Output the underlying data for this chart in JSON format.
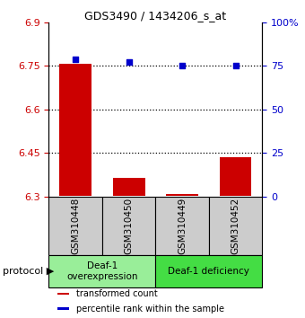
{
  "title": "GDS3490 / 1434206_s_at",
  "samples": [
    "GSM310448",
    "GSM310450",
    "GSM310449",
    "GSM310452"
  ],
  "bar_bottoms": [
    6.302,
    6.302,
    6.302,
    6.302
  ],
  "bar_tops": [
    6.758,
    6.365,
    6.308,
    6.435
  ],
  "percentile_ranks": [
    79,
    77,
    75,
    75
  ],
  "ylim_left": [
    6.3,
    6.9
  ],
  "ylim_right": [
    0,
    100
  ],
  "yticks_left": [
    6.3,
    6.45,
    6.6,
    6.75,
    6.9
  ],
  "yticks_right": [
    0,
    25,
    50,
    75,
    100
  ],
  "ytick_labels_left": [
    "6.3",
    "6.45",
    "6.6",
    "6.75",
    "6.9"
  ],
  "ytick_labels_right": [
    "0",
    "25",
    "50",
    "75",
    "100%"
  ],
  "dotted_lines": [
    6.75,
    6.6,
    6.45
  ],
  "bar_color": "#cc0000",
  "dot_color": "#0000cc",
  "bar_width": 0.6,
  "group1_color": "#99ee99",
  "group2_color": "#44dd44",
  "group1_label": "Deaf-1\noverexpression",
  "group2_label": "Deaf-1 deficiency",
  "protocol_label": "protocol",
  "legend_items": [
    {
      "color": "#cc0000",
      "label": "transformed count"
    },
    {
      "color": "#0000cc",
      "label": "percentile rank within the sample"
    }
  ],
  "tick_color_left": "#cc0000",
  "tick_color_right": "#0000cc",
  "sample_box_color": "#cccccc"
}
